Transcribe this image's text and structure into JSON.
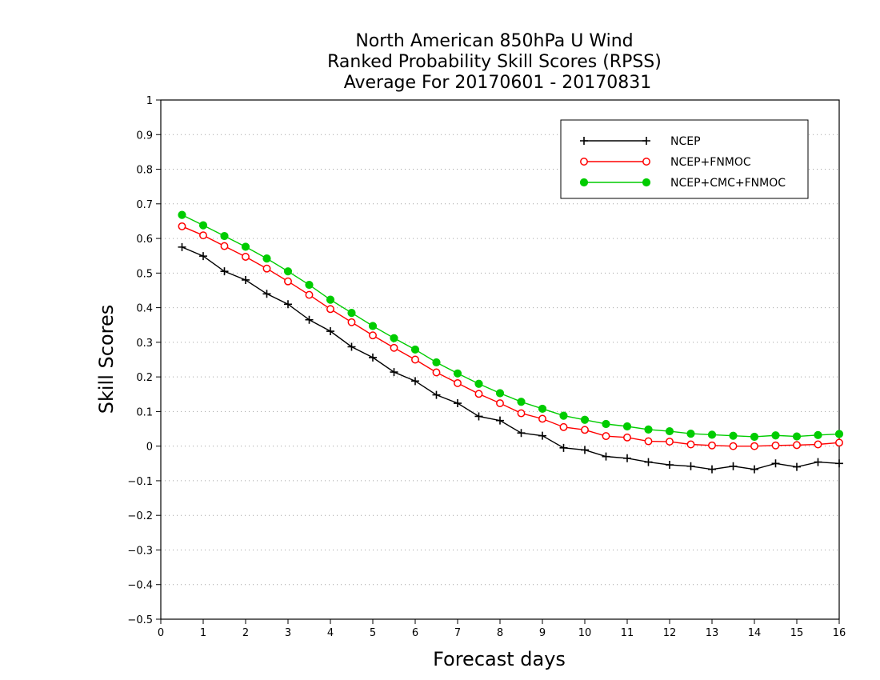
{
  "chart_data": {
    "type": "line",
    "title": [
      "North American 850hPa U Wind",
      "Ranked Probability Skill Scores (RPSS)",
      "Average For 20170601 - 20170831"
    ],
    "xlabel": "Forecast days",
    "ylabel": "Skill Scores",
    "xlim": [
      0,
      16
    ],
    "ylim": [
      -0.5,
      1
    ],
    "xticks": [
      "0",
      "1",
      "2",
      "3",
      "4",
      "5",
      "6",
      "7",
      "8",
      "9",
      "10",
      "11",
      "12",
      "13",
      "14",
      "15",
      "16"
    ],
    "yticks": [
      "−0.5",
      "−0.4",
      "−0.3",
      "−0.2",
      "−0.1",
      "0",
      "0.1",
      "0.2",
      "0.3",
      "0.4",
      "0.5",
      "0.6",
      "0.7",
      "0.8",
      "0.9",
      "1"
    ],
    "grid": true,
    "legend_position": "top-right",
    "x": [
      0.5,
      1,
      1.5,
      2,
      2.5,
      3,
      3.5,
      4,
      4.5,
      5,
      5.5,
      6,
      6.5,
      7,
      7.5,
      8,
      8.5,
      9,
      9.5,
      10,
      10.5,
      11,
      11.5,
      12,
      12.5,
      13,
      13.5,
      14,
      14.5,
      15,
      15.5,
      16
    ],
    "series": [
      {
        "name": "NCEP",
        "color": "#000000",
        "marker": "plus",
        "values": [
          0.575,
          0.549,
          0.505,
          0.48,
          0.44,
          0.41,
          0.365,
          0.332,
          0.287,
          0.256,
          0.214,
          0.188,
          0.148,
          0.124,
          0.086,
          0.074,
          0.038,
          0.03,
          -0.005,
          -0.011,
          -0.03,
          -0.035,
          -0.046,
          -0.054,
          -0.058,
          -0.067,
          -0.058,
          -0.067,
          -0.05,
          -0.06,
          -0.046,
          -0.05
        ]
      },
      {
        "name": "NCEP+FNMOC",
        "color": "#ff0000",
        "marker": "open-circle",
        "values": [
          0.635,
          0.609,
          0.578,
          0.547,
          0.513,
          0.476,
          0.437,
          0.396,
          0.358,
          0.32,
          0.284,
          0.25,
          0.213,
          0.182,
          0.151,
          0.124,
          0.095,
          0.079,
          0.055,
          0.047,
          0.029,
          0.025,
          0.014,
          0.013,
          0.005,
          0.002,
          0.0,
          0.0,
          0.002,
          0.003,
          0.005,
          0.01
        ]
      },
      {
        "name": "NCEP+CMC+FNMOC",
        "color": "#00cc00",
        "marker": "filled-circle",
        "values": [
          0.668,
          0.638,
          0.607,
          0.576,
          0.542,
          0.505,
          0.466,
          0.423,
          0.385,
          0.347,
          0.312,
          0.279,
          0.242,
          0.21,
          0.18,
          0.153,
          0.128,
          0.108,
          0.088,
          0.076,
          0.064,
          0.057,
          0.048,
          0.043,
          0.036,
          0.033,
          0.03,
          0.027,
          0.031,
          0.028,
          0.032,
          0.035
        ]
      }
    ]
  }
}
